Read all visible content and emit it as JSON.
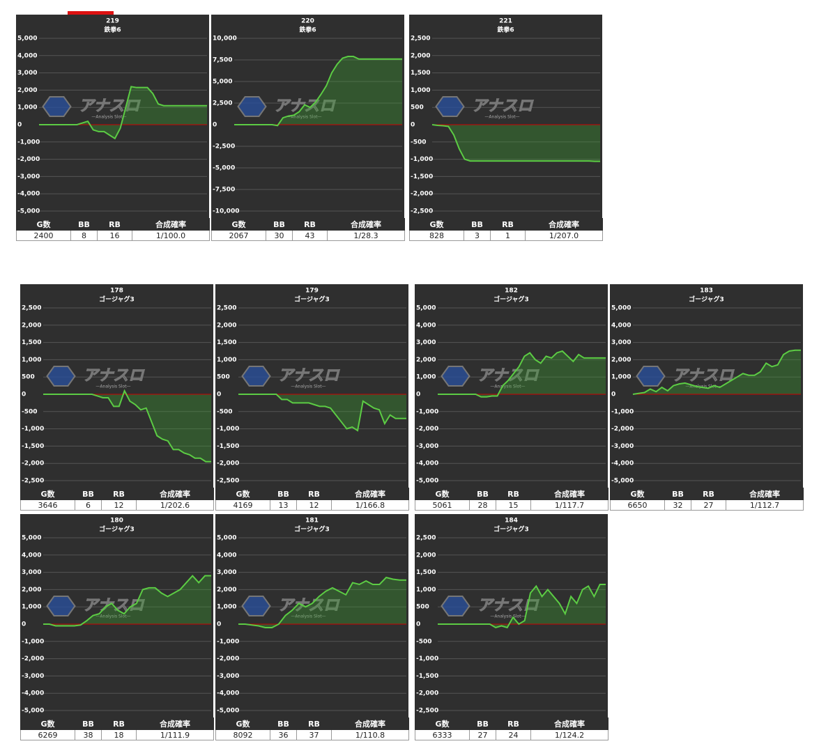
{
  "watermark": {
    "text": "アナスロ",
    "sub": "—Analysis Slot—"
  },
  "table_header": [
    "G数",
    "BB",
    "RB",
    "合成確率"
  ],
  "chart_data": [
    {
      "type": "line",
      "title": "219",
      "subtitle": "鉄拳6",
      "color": "#5ccc44",
      "ylim": [
        -5000,
        5000
      ],
      "yticks": [
        {
          "value": -5000,
          "label": "-5,000"
        },
        {
          "value": -4000,
          "label": "-4,000"
        },
        {
          "value": -3000,
          "label": "-3,000"
        },
        {
          "value": -2000,
          "label": "-2,000"
        },
        {
          "value": -1000,
          "label": "-1,000"
        },
        0,
        {
          "value": 1000,
          "label": "1,000"
        },
        {
          "value": 2000,
          "label": "2,000"
        },
        {
          "value": 3000,
          "label": "3,000"
        },
        {
          "value": 4000,
          "label": "4,000"
        },
        {
          "value": 5000,
          "label": "5,000"
        }
      ],
      "values": [
        0,
        0,
        0,
        0,
        0,
        0,
        0,
        0,
        100,
        200,
        -300,
        -400,
        -400,
        -600,
        -800,
        -200,
        1000,
        2200,
        2150,
        2150,
        2150,
        1800,
        1200,
        1100,
        1100,
        1100,
        1100,
        1100,
        1100,
        1100,
        1100,
        1100
      ],
      "stats": [
        2400,
        8,
        16,
        "1/100.0"
      ]
    },
    {
      "type": "line",
      "title": "220",
      "subtitle": "鉄拳6",
      "color": "#5ccc44",
      "ylim": [
        -10000,
        10000
      ],
      "yticks": [
        {
          "value": -10000,
          "label": "-10,000"
        },
        {
          "value": -7500,
          "label": "-7,500"
        },
        {
          "value": -5000,
          "label": "-5,000"
        },
        {
          "value": -2500,
          "label": "-2,500"
        },
        0,
        {
          "value": 2500,
          "label": "2,500"
        },
        {
          "value": 5000,
          "label": "5,000"
        },
        {
          "value": 7500,
          "label": "7,500"
        },
        {
          "value": 10000,
          "label": "10,000"
        }
      ],
      "values": [
        0,
        0,
        0,
        0,
        0,
        0,
        0,
        0,
        -100,
        800,
        1000,
        1100,
        1500,
        2300,
        2000,
        2600,
        3500,
        4500,
        6000,
        7000,
        7700,
        7900,
        7900,
        7600,
        7600,
        7600,
        7600,
        7600,
        7600,
        7600,
        7600,
        7600
      ],
      "stats": [
        2067,
        30,
        43,
        "1/28.3"
      ]
    },
    {
      "type": "line",
      "title": "221",
      "subtitle": "鉄拳6",
      "color": "#5ccc44",
      "ylim": [
        -2500,
        2500
      ],
      "yticks": [
        {
          "value": -2500,
          "label": "-2,500"
        },
        {
          "value": -2000,
          "label": "-2,000"
        },
        {
          "value": -1500,
          "label": "-1,500"
        },
        {
          "value": -1000,
          "label": "-1,000"
        },
        -500,
        0,
        500,
        {
          "value": 1000,
          "label": "1,000"
        },
        {
          "value": 1500,
          "label": "1,500"
        },
        {
          "value": 2000,
          "label": "2,000"
        },
        {
          "value": 2500,
          "label": "2,500"
        }
      ],
      "values": [
        0,
        -20,
        -30,
        -50,
        -300,
        -700,
        -1000,
        -1050,
        -1050,
        -1050,
        -1050,
        -1050,
        -1050,
        -1050,
        -1050,
        -1050,
        -1050,
        -1050,
        -1050,
        -1050,
        -1050,
        -1050,
        -1050,
        -1050,
        -1050,
        -1050,
        -1050,
        -1050,
        -1050,
        -1050,
        -1060,
        -1060
      ],
      "stats": [
        828,
        3,
        1,
        "1/207.0"
      ]
    },
    {
      "type": "line",
      "title": "178",
      "subtitle": "ゴージャグ3",
      "color": "#5ccc44",
      "ylim": [
        -2500,
        2500
      ],
      "yticks": [
        {
          "value": -2500,
          "label": "-2,500"
        },
        {
          "value": -2000,
          "label": "-2,000"
        },
        {
          "value": -1500,
          "label": "-1,500"
        },
        {
          "value": -1000,
          "label": "-1,000"
        },
        -500,
        0,
        500,
        {
          "value": 1000,
          "label": "1,000"
        },
        {
          "value": 1500,
          "label": "1,500"
        },
        {
          "value": 2000,
          "label": "2,000"
        },
        {
          "value": 2500,
          "label": "2,500"
        }
      ],
      "values": [
        0,
        0,
        0,
        0,
        0,
        0,
        0,
        0,
        0,
        0,
        -50,
        -100,
        -100,
        -350,
        -350,
        100,
        -200,
        -300,
        -450,
        -400,
        -800,
        -1200,
        -1300,
        -1350,
        -1600,
        -1600,
        -1700,
        -1750,
        -1850,
        -1850,
        -1950,
        -1950
      ],
      "stats": [
        3646,
        6,
        12,
        "1/202.6"
      ]
    },
    {
      "type": "line",
      "title": "179",
      "subtitle": "ゴージャグ3",
      "color": "#5ccc44",
      "ylim": [
        -2500,
        2500
      ],
      "yticks": [
        {
          "value": -2500,
          "label": "-2,500"
        },
        {
          "value": -2000,
          "label": "-2,000"
        },
        {
          "value": -1500,
          "label": "-1,500"
        },
        {
          "value": -1000,
          "label": "-1,000"
        },
        -500,
        0,
        500,
        {
          "value": 1000,
          "label": "1,000"
        },
        {
          "value": 1500,
          "label": "1,500"
        },
        {
          "value": 2000,
          "label": "2,000"
        },
        {
          "value": 2500,
          "label": "2,500"
        }
      ],
      "values": [
        0,
        0,
        0,
        0,
        0,
        0,
        0,
        0,
        -150,
        -150,
        -250,
        -250,
        -250,
        -250,
        -300,
        -350,
        -350,
        -400,
        -600,
        -800,
        -1000,
        -950,
        -1050,
        -200,
        -300,
        -400,
        -450,
        -850,
        -600,
        -700,
        -700,
        -700
      ],
      "stats": [
        4169,
        13,
        12,
        "1/166.8"
      ]
    },
    {
      "type": "line",
      "title": "182",
      "subtitle": "ゴージャグ3",
      "color": "#5ccc44",
      "ylim": [
        -5000,
        5000
      ],
      "yticks": [
        {
          "value": -5000,
          "label": "-5,000"
        },
        {
          "value": -4000,
          "label": "-4,000"
        },
        {
          "value": -3000,
          "label": "-3,000"
        },
        {
          "value": -2000,
          "label": "-2,000"
        },
        {
          "value": -1000,
          "label": "-1,000"
        },
        0,
        {
          "value": 1000,
          "label": "1,000"
        },
        {
          "value": 2000,
          "label": "2,000"
        },
        {
          "value": 3000,
          "label": "3,000"
        },
        {
          "value": 4000,
          "label": "4,000"
        },
        {
          "value": 5000,
          "label": "5,000"
        }
      ],
      "values": [
        0,
        0,
        0,
        0,
        0,
        0,
        0,
        0,
        -150,
        -150,
        -100,
        -100,
        500,
        800,
        1200,
        1600,
        2200,
        2400,
        2000,
        1800,
        2200,
        2100,
        2400,
        2500,
        2200,
        1900,
        2300,
        2100,
        2100,
        2100,
        2100,
        2100
      ],
      "stats": [
        5061,
        28,
        15,
        "1/117.7"
      ]
    },
    {
      "type": "line",
      "title": "183",
      "subtitle": "ゴージャグ3",
      "color": "#5ccc44",
      "ylim": [
        -5000,
        5000
      ],
      "yticks": [
        {
          "value": -5000,
          "label": "-5,000"
        },
        {
          "value": -4000,
          "label": "-4,000"
        },
        {
          "value": -3000,
          "label": "-3,000"
        },
        {
          "value": -2000,
          "label": "-2,000"
        },
        {
          "value": -1000,
          "label": "-1,000"
        },
        0,
        {
          "value": 1000,
          "label": "1,000"
        },
        {
          "value": 2000,
          "label": "2,000"
        },
        {
          "value": 3000,
          "label": "3,000"
        },
        {
          "value": 4000,
          "label": "4,000"
        },
        {
          "value": 5000,
          "label": "5,000"
        }
      ],
      "values": [
        0,
        50,
        100,
        300,
        150,
        400,
        200,
        500,
        600,
        650,
        550,
        450,
        400,
        350,
        500,
        400,
        600,
        800,
        1000,
        1200,
        1100,
        1100,
        1300,
        1800,
        1600,
        1700,
        2300,
        2500,
        2550,
        2550
      ],
      "stats": [
        6650,
        32,
        27,
        "1/112.7"
      ]
    },
    {
      "type": "line",
      "title": "180",
      "subtitle": "ゴージャグ3",
      "color": "#5ccc44",
      "ylim": [
        -5000,
        5000
      ],
      "yticks": [
        {
          "value": -5000,
          "label": "-5,000"
        },
        {
          "value": -4000,
          "label": "-4,000"
        },
        {
          "value": -3000,
          "label": "-3,000"
        },
        {
          "value": -2000,
          "label": "-2,000"
        },
        {
          "value": -1000,
          "label": "-1,000"
        },
        0,
        {
          "value": 1000,
          "label": "1,000"
        },
        {
          "value": 2000,
          "label": "2,000"
        },
        {
          "value": 3000,
          "label": "3,000"
        },
        {
          "value": 4000,
          "label": "4,000"
        },
        {
          "value": 5000,
          "label": "5,000"
        }
      ],
      "values": [
        0,
        0,
        -100,
        -100,
        -100,
        -100,
        -50,
        200,
        500,
        600,
        1000,
        1200,
        800,
        600,
        1000,
        1200,
        2000,
        2100,
        2100,
        1800,
        1600,
        1800,
        2000,
        2400,
        2800,
        2400,
        2800,
        2800
      ],
      "stats": [
        6269,
        38,
        18,
        "1/111.9"
      ]
    },
    {
      "type": "line",
      "title": "181",
      "subtitle": "ゴージャグ3",
      "color": "#5ccc44",
      "ylim": [
        -5000,
        5000
      ],
      "yticks": [
        {
          "value": -5000,
          "label": "-5,000"
        },
        {
          "value": -4000,
          "label": "-4,000"
        },
        {
          "value": -3000,
          "label": "-3,000"
        },
        {
          "value": -2000,
          "label": "-2,000"
        },
        {
          "value": -1000,
          "label": "-1,000"
        },
        0,
        {
          "value": 1000,
          "label": "1,000"
        },
        {
          "value": 2000,
          "label": "2,000"
        },
        {
          "value": 3000,
          "label": "3,000"
        },
        {
          "value": 4000,
          "label": "4,000"
        },
        {
          "value": 5000,
          "label": "5,000"
        }
      ],
      "values": [
        0,
        0,
        -50,
        -100,
        -200,
        -200,
        0,
        500,
        800,
        1200,
        1000,
        1200,
        1600,
        1900,
        2100,
        1900,
        1700,
        2400,
        2300,
        2500,
        2300,
        2300,
        2700,
        2600,
        2550,
        2550
      ],
      "stats": [
        8092,
        36,
        37,
        "1/110.8"
      ]
    },
    {
      "type": "line",
      "title": "184",
      "subtitle": "ゴージャグ3",
      "color": "#5ccc44",
      "ylim": [
        -2500,
        2500
      ],
      "yticks": [
        {
          "value": -2500,
          "label": "-2,500"
        },
        {
          "value": -2000,
          "label": "-2,000"
        },
        {
          "value": -1500,
          "label": "-1,500"
        },
        {
          "value": -1000,
          "label": "-1,000"
        },
        -500,
        0,
        500,
        {
          "value": 1000,
          "label": "1,000"
        },
        {
          "value": 1500,
          "label": "1,500"
        },
        {
          "value": 2000,
          "label": "2,000"
        },
        {
          "value": 2500,
          "label": "2,500"
        }
      ],
      "values": [
        0,
        0,
        0,
        0,
        0,
        0,
        0,
        0,
        0,
        0,
        -100,
        -50,
        -100,
        200,
        0,
        100,
        900,
        1100,
        800,
        1000,
        800,
        600,
        300,
        800,
        600,
        1000,
        1100,
        800,
        1150,
        1150
      ],
      "stats": [
        6333,
        27,
        24,
        "1/124.2"
      ]
    }
  ]
}
